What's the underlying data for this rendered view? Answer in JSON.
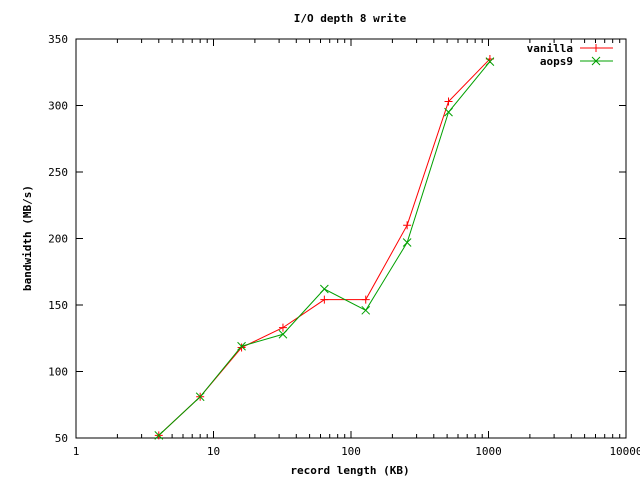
{
  "chart_data": {
    "type": "line",
    "title": "I/O depth 8 write",
    "xlabel": "record length (KB)",
    "ylabel": "bandwidth (MB/s)",
    "x_scale": "log",
    "xlim": [
      1,
      10000
    ],
    "ylim": [
      50,
      350
    ],
    "x_ticks": [
      1,
      10,
      100,
      1000,
      10000
    ],
    "y_ticks": [
      50,
      100,
      150,
      200,
      250,
      300,
      350
    ],
    "grid": false,
    "legend_position": "top-right",
    "x": [
      4,
      8,
      16,
      32,
      64,
      128,
      256,
      512,
      1024
    ],
    "series": [
      {
        "name": "vanilla",
        "color": "#ff0000",
        "marker": "plus",
        "values": [
          52,
          81,
          118,
          133,
          154,
          154,
          210,
          303,
          335
        ]
      },
      {
        "name": "aops9",
        "color": "#00a000",
        "marker": "cross",
        "values": [
          52,
          81,
          119,
          128,
          162,
          146,
          197,
          295,
          333
        ]
      }
    ]
  }
}
